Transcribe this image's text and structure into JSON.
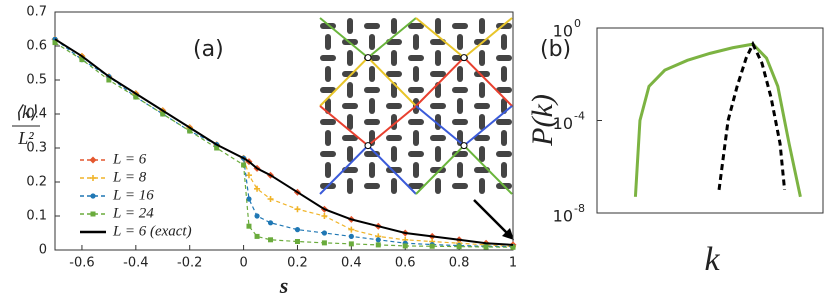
{
  "chart_data": [
    {
      "type": "line",
      "annotation": "(a)",
      "xlabel": "s",
      "ylabel": {
        "numerator": "⟨k⟩",
        "denominator": "L²"
      },
      "xlim": [
        -0.7,
        1
      ],
      "ylim": [
        0,
        0.7
      ],
      "xticks": [
        -0.6,
        -0.4,
        -0.2,
        0,
        0.2,
        0.4,
        0.6,
        0.8,
        1
      ],
      "yticks": [
        0,
        0.1,
        0.2,
        0.3,
        0.4,
        0.5,
        0.6,
        0.7
      ],
      "x": [
        -0.7,
        -0.6,
        -0.5,
        -0.4,
        -0.3,
        -0.2,
        -0.1,
        0,
        0.02,
        0.05,
        0.1,
        0.2,
        0.3,
        0.4,
        0.5,
        0.6,
        0.7,
        0.8,
        0.9,
        1
      ],
      "series": [
        {
          "name": "L = 6",
          "color": "#e4572e",
          "marker": "diamond",
          "dashed": true,
          "values": [
            0.62,
            0.57,
            0.51,
            0.46,
            0.41,
            0.36,
            0.31,
            0.27,
            0.26,
            0.24,
            0.22,
            0.17,
            0.12,
            0.09,
            0.07,
            0.05,
            0.04,
            0.03,
            0.02,
            0.015
          ]
        },
        {
          "name": "L = 8",
          "color": "#f0b429",
          "marker": "star",
          "dashed": true,
          "values": [
            0.62,
            0.57,
            0.51,
            0.46,
            0.41,
            0.36,
            0.31,
            0.27,
            0.22,
            0.18,
            0.15,
            0.12,
            0.1,
            0.06,
            0.04,
            0.03,
            0.025,
            0.02,
            0.015,
            0.01
          ]
        },
        {
          "name": "L = 16",
          "color": "#1f77b4",
          "marker": "circle",
          "dashed": true,
          "values": [
            0.62,
            0.56,
            0.51,
            0.45,
            0.4,
            0.35,
            0.31,
            0.27,
            0.15,
            0.1,
            0.08,
            0.06,
            0.05,
            0.04,
            0.03,
            0.02,
            0.016,
            0.013,
            0.011,
            0.01
          ]
        },
        {
          "name": "L = 24",
          "color": "#6aab3c",
          "marker": "square",
          "dashed": true,
          "values": [
            0.61,
            0.56,
            0.5,
            0.45,
            0.4,
            0.35,
            0.3,
            0.25,
            0.07,
            0.04,
            0.03,
            0.025,
            0.021,
            0.018,
            0.015,
            0.012,
            0.011,
            0.01,
            0.009,
            0.008
          ]
        },
        {
          "name": "L = 6 (exact)",
          "color": "#000000",
          "marker": "none",
          "dashed": false,
          "values": [
            0.62,
            0.57,
            0.51,
            0.46,
            0.41,
            0.36,
            0.31,
            0.27,
            0.26,
            0.24,
            0.22,
            0.17,
            0.12,
            0.09,
            0.07,
            0.05,
            0.04,
            0.03,
            0.02,
            0.015
          ]
        }
      ]
    },
    {
      "type": "line",
      "annotation": "(b)",
      "xlabel": "k",
      "ylabel": "P(k)",
      "log_y": true,
      "xlim": [
        0,
        1
      ],
      "ylim": [
        1e-08,
        1
      ],
      "yticks": [
        {
          "value": 1,
          "label": "10",
          "exp": "0"
        },
        {
          "value": 0.0001,
          "label": "10",
          "exp": "-4"
        },
        {
          "value": 1e-08,
          "label": "10",
          "exp": "-8"
        }
      ],
      "series": [
        {
          "color": "#7cb342",
          "dashed": false,
          "x": [
            0.17,
            0.19,
            0.23,
            0.3,
            0.4,
            0.5,
            0.6,
            0.69,
            0.75,
            0.8,
            0.85,
            0.9
          ],
          "values": [
            5e-08,
            0.0001,
            0.003,
            0.015,
            0.04,
            0.08,
            0.14,
            0.2,
            0.05,
            0.003,
            1e-05,
            5e-08
          ]
        },
        {
          "color": "#000000",
          "dashed": true,
          "x": [
            0.54,
            0.58,
            0.62,
            0.66,
            0.69,
            0.73,
            0.77,
            0.81,
            0.83
          ],
          "values": [
            1e-07,
            0.0001,
            0.003,
            0.05,
            0.2,
            0.03,
            0.001,
            1e-05,
            1e-07
          ]
        }
      ]
    }
  ]
}
